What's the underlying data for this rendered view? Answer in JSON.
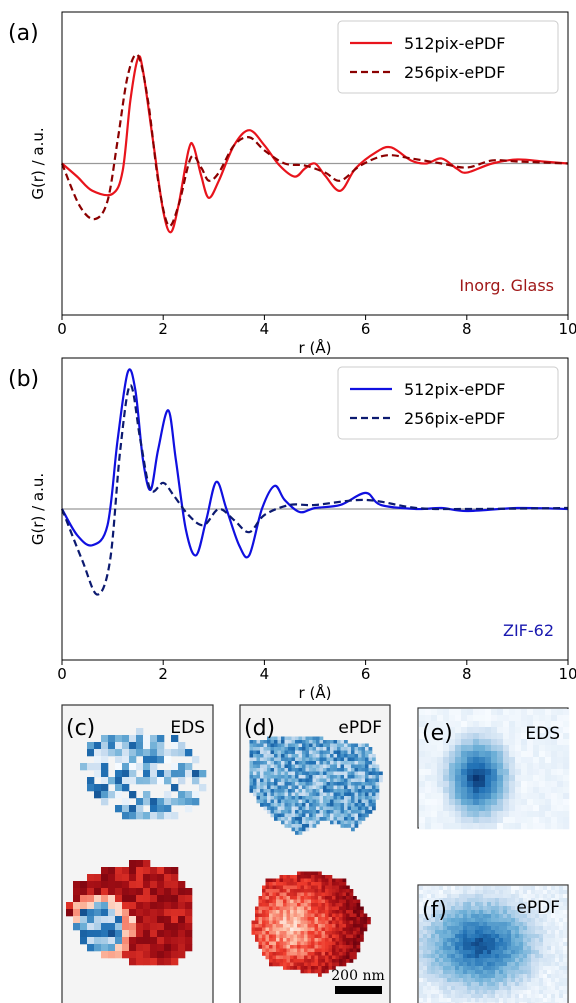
{
  "chart_data": [
    {
      "type": "line",
      "panel_label": "(a)",
      "annotation": "Inorg. Glass",
      "annotation_color": "#a01818",
      "xlabel": "r (Å)",
      "ylabel": "G(r) / a.u.",
      "xlim": [
        0,
        10
      ],
      "ylim": [
        -1.5,
        1.5
      ],
      "xticks": [
        0,
        2,
        4,
        6,
        8,
        10
      ],
      "zero_line": true,
      "legend": "upper right",
      "series": [
        {
          "name": "512pix-ePDF",
          "color": "#e8141c",
          "linestyle": "solid",
          "x": [
            0,
            0.3,
            0.6,
            1.0,
            1.2,
            1.35,
            1.5,
            1.6,
            1.8,
            2.0,
            2.15,
            2.3,
            2.5,
            2.6,
            2.75,
            2.9,
            3.1,
            3.4,
            3.7,
            4.0,
            4.3,
            4.6,
            4.8,
            5.0,
            5.2,
            5.5,
            5.8,
            6.2,
            6.5,
            6.9,
            7.2,
            7.5,
            7.8,
            8.0,
            8.5,
            9.0,
            9.5,
            10
          ],
          "values": [
            0,
            -0.13,
            -0.27,
            -0.3,
            -0.07,
            0.62,
            1.04,
            0.92,
            0.22,
            -0.47,
            -0.68,
            -0.42,
            0.13,
            0.17,
            -0.12,
            -0.34,
            -0.17,
            0.18,
            0.33,
            0.18,
            -0.02,
            -0.13,
            -0.05,
            0,
            -0.12,
            -0.27,
            -0.05,
            0.11,
            0.16,
            0.03,
            0,
            0.05,
            -0.05,
            -0.09,
            0,
            0.04,
            0.02,
            0
          ]
        },
        {
          "name": "256pix-ePDF",
          "color": "#8b0000",
          "linestyle": "dashed",
          "x": [
            0,
            0.35,
            0.65,
            0.9,
            1.1,
            1.3,
            1.5,
            1.7,
            1.9,
            2.1,
            2.3,
            2.55,
            2.75,
            2.9,
            3.1,
            3.4,
            3.7,
            4.0,
            4.4,
            4.8,
            5.2,
            5.5,
            5.9,
            6.4,
            6.9,
            7.5,
            8.0,
            8.5,
            9.0,
            10
          ],
          "values": [
            0,
            -0.42,
            -0.55,
            -0.37,
            0.23,
            0.87,
            1.07,
            0.62,
            -0.17,
            -0.61,
            -0.42,
            0.06,
            -0.04,
            -0.17,
            -0.09,
            0.18,
            0.26,
            0.13,
            0,
            -0.02,
            -0.09,
            -0.17,
            -0.02,
            0.08,
            0.05,
            0,
            -0.04,
            0.03,
            0.02,
            0
          ]
        }
      ]
    },
    {
      "type": "line",
      "panel_label": "(b)",
      "annotation": "ZIF-62",
      "annotation_color": "#1a1ab0",
      "xlabel": "r (Å)",
      "ylabel": "G(r) / a.u.",
      "xlim": [
        0,
        10
      ],
      "ylim": [
        -1.5,
        1.5
      ],
      "xticks": [
        0,
        2,
        4,
        6,
        8,
        10
      ],
      "zero_line": true,
      "legend": "upper right",
      "series": [
        {
          "name": "512pix-ePDF",
          "color": "#1010e0",
          "linestyle": "solid",
          "x": [
            0,
            0.3,
            0.6,
            0.9,
            1.1,
            1.3,
            1.45,
            1.6,
            1.75,
            1.9,
            2.1,
            2.25,
            2.45,
            2.65,
            2.85,
            3.05,
            3.25,
            3.5,
            3.7,
            3.95,
            4.2,
            4.4,
            4.7,
            5.0,
            5.5,
            6.0,
            6.3,
            7.0,
            7.5,
            8.0,
            9.0,
            10
          ],
          "values": [
            0,
            -0.26,
            -0.36,
            -0.16,
            0.69,
            1.36,
            1.18,
            0.49,
            0.19,
            0.59,
            0.98,
            0.49,
            -0.21,
            -0.46,
            -0.11,
            0.27,
            0,
            -0.36,
            -0.46,
            0,
            0.23,
            0.09,
            -0.03,
            0.01,
            0.04,
            0.16,
            0.04,
            0,
            0.01,
            -0.02,
            0.01,
            0
          ]
        },
        {
          "name": "256pix-ePDF",
          "color": "#0c1a70",
          "linestyle": "dashed",
          "x": [
            0,
            0.4,
            0.7,
            0.95,
            1.15,
            1.35,
            1.55,
            1.75,
            2.0,
            2.2,
            2.5,
            2.8,
            3.1,
            3.4,
            3.7,
            4.0,
            4.5,
            5.0,
            6.0,
            7.0,
            8.0,
            10
          ],
          "values": [
            0,
            -0.51,
            -0.85,
            -0.51,
            0.58,
            1.23,
            0.68,
            0.19,
            0.26,
            0.14,
            -0.06,
            -0.16,
            0,
            -0.11,
            -0.23,
            -0.06,
            0.04,
            0.04,
            0.09,
            0.01,
            0,
            0.01
          ]
        }
      ]
    }
  ],
  "panels": [
    {
      "label": "(c)",
      "caption": "EDS"
    },
    {
      "label": "(d)",
      "caption": "ePDF"
    },
    {
      "label": "(e)",
      "caption": "EDS"
    },
    {
      "label": "(f)",
      "caption": "ePDF"
    }
  ],
  "scale_bar": "200 nm"
}
